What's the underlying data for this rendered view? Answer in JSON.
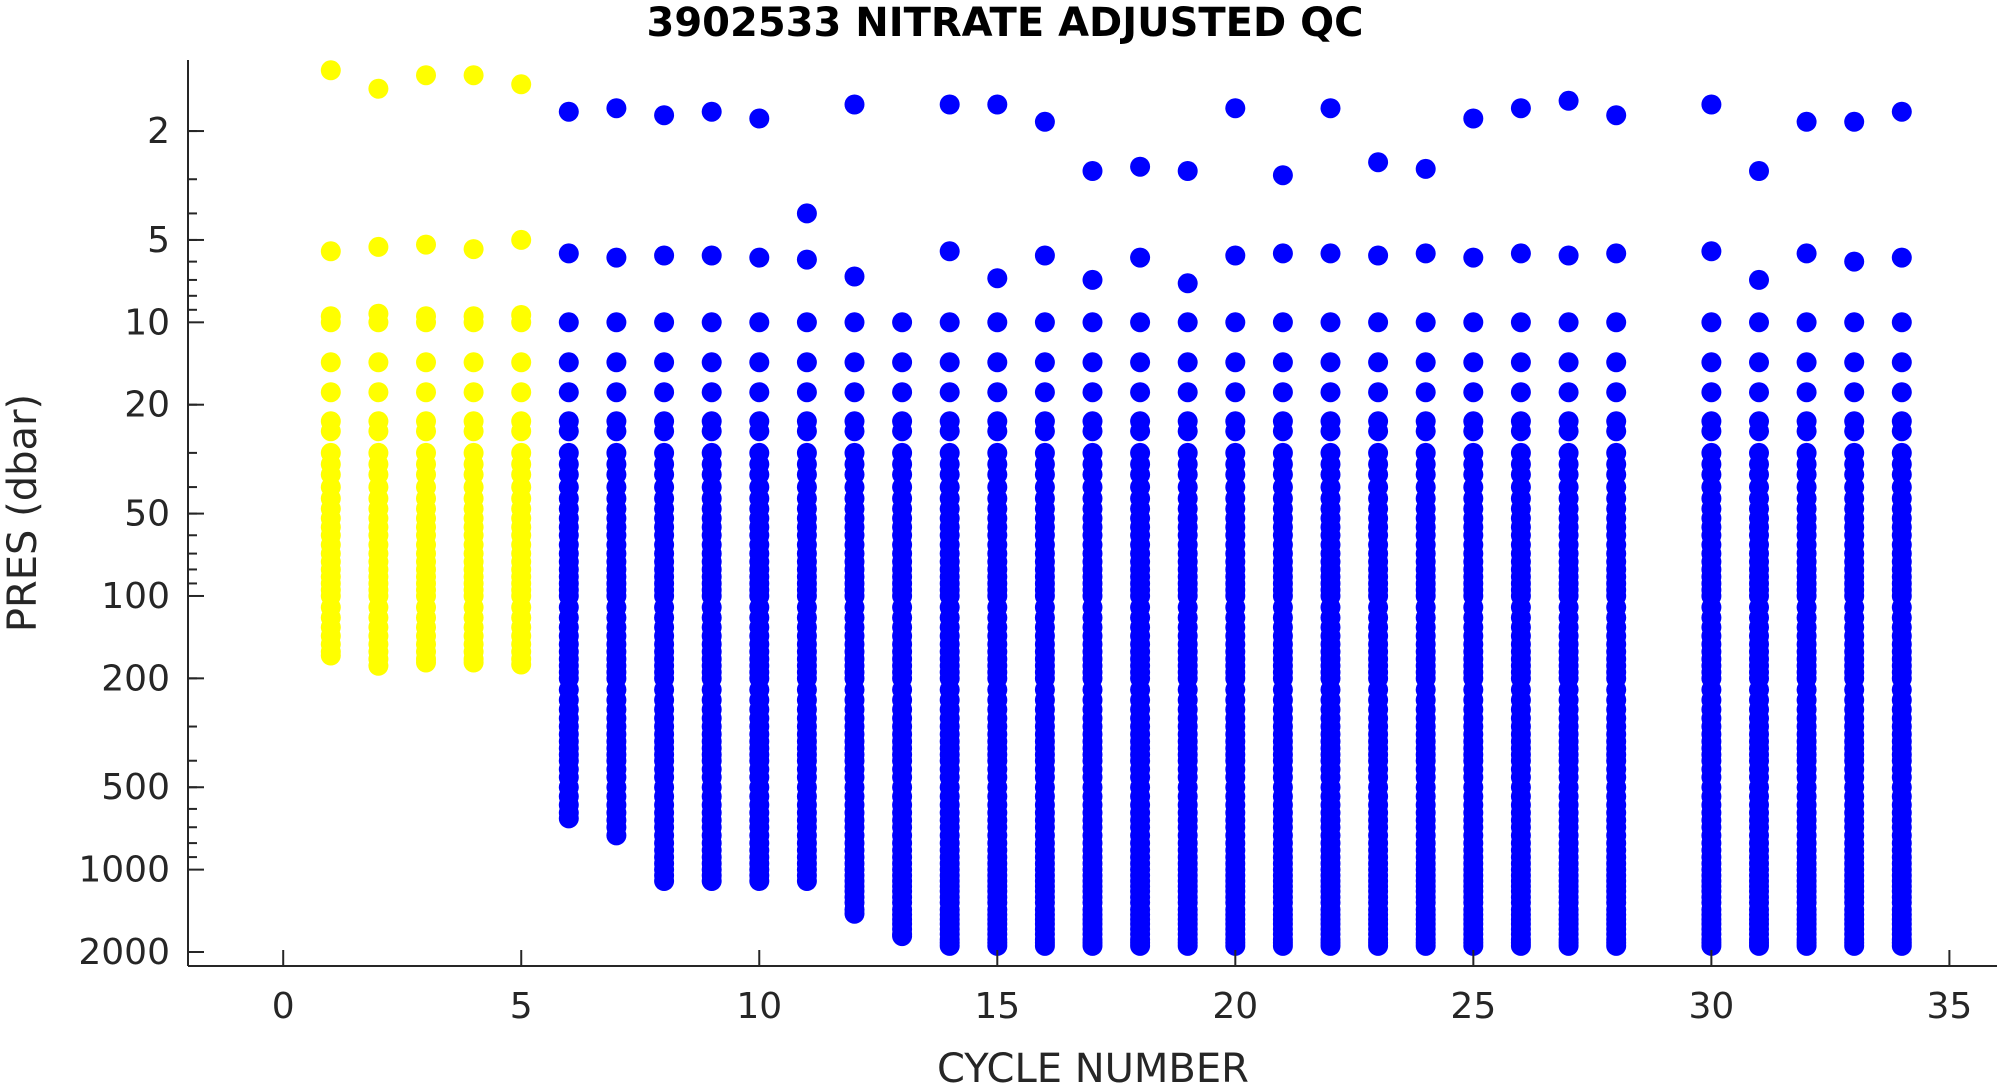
{
  "chart_data": {
    "type": "scatter",
    "title": "3902533  NITRATE ADJUSTED QC",
    "xlabel": "CYCLE NUMBER",
    "ylabel": "PRES (dbar)",
    "xlim": [
      -2,
      36
    ],
    "ylim": [
      1.1,
      2250
    ],
    "y_scale": "log",
    "y_reversed": true,
    "x_ticks": [
      0,
      5,
      10,
      15,
      20,
      25,
      30,
      35
    ],
    "y_ticks": [
      2,
      5,
      10,
      20,
      50,
      100,
      200,
      500,
      1000,
      2000
    ],
    "grid": false,
    "legend": "none",
    "profile_levels": [
      10,
      14,
      18,
      23,
      25,
      30,
      33,
      36,
      40,
      44,
      48,
      52,
      56,
      60,
      65,
      70,
      75,
      80,
      85,
      90,
      95,
      100,
      110,
      120,
      130,
      140,
      150,
      160,
      170,
      180,
      190,
      200,
      220,
      240,
      260,
      280,
      300,
      320,
      340,
      360,
      380,
      400,
      430,
      460,
      500,
      540,
      580,
      620,
      660,
      700,
      750,
      800,
      850,
      900,
      950,
      1000,
      1050,
      1100,
      1150,
      1200,
      1260,
      1320,
      1400,
      1460,
      1520,
      1580,
      1650,
      1720,
      1800,
      1850,
      1900
    ],
    "series": [
      {
        "color": "#FFFF00",
        "profiles": [
          {
            "cycle": 1,
            "top": [
              1.2,
              5.5,
              9.5
            ],
            "max": 165
          },
          {
            "cycle": 2,
            "top": [
              1.4,
              5.3,
              9.3
            ],
            "max": 180
          },
          {
            "cycle": 3,
            "top": [
              1.25,
              5.2,
              9.5
            ],
            "max": 175
          },
          {
            "cycle": 4,
            "top": [
              1.25,
              5.4,
              9.5
            ],
            "max": 175
          },
          {
            "cycle": 5,
            "top": [
              1.35,
              5.0,
              9.4
            ],
            "max": 178
          }
        ]
      },
      {
        "color": "#0000FF",
        "profiles": [
          {
            "cycle": 6,
            "top": [
              1.7,
              5.6
            ],
            "max": 650
          },
          {
            "cycle": 7,
            "top": [
              1.65,
              5.8
            ],
            "max": 750
          },
          {
            "cycle": 8,
            "top": [
              1.75,
              5.7
            ],
            "max": 1100
          },
          {
            "cycle": 9,
            "top": [
              1.7,
              5.7
            ],
            "max": 1100
          },
          {
            "cycle": 10,
            "top": [
              1.8,
              5.8
            ],
            "max": 1100
          },
          {
            "cycle": 11,
            "top": [
              4.0,
              5.9
            ],
            "max": 1100
          },
          {
            "cycle": 12,
            "top": [
              1.6,
              6.8
            ],
            "max": 1450
          },
          {
            "cycle": 13,
            "top": [],
            "max": 1750
          },
          {
            "cycle": 14,
            "top": [
              1.6,
              5.5
            ],
            "max": 1900
          },
          {
            "cycle": 15,
            "top": [
              1.6,
              6.9
            ],
            "max": 1900
          },
          {
            "cycle": 16,
            "top": [
              1.85,
              5.7
            ],
            "max": 1900
          },
          {
            "cycle": 17,
            "top": [
              2.8,
              7.0
            ],
            "max": 1900
          },
          {
            "cycle": 18,
            "top": [
              2.7,
              5.8
            ],
            "max": 1900
          },
          {
            "cycle": 19,
            "top": [
              2.8,
              7.2
            ],
            "max": 1900
          },
          {
            "cycle": 20,
            "top": [
              1.65,
              5.7
            ],
            "max": 1900
          },
          {
            "cycle": 21,
            "top": [
              2.9,
              5.6
            ],
            "max": 1900
          },
          {
            "cycle": 22,
            "top": [
              1.65,
              5.6
            ],
            "max": 1900
          },
          {
            "cycle": 23,
            "top": [
              2.6,
              5.7
            ],
            "max": 1900
          },
          {
            "cycle": 24,
            "top": [
              2.75,
              5.6
            ],
            "max": 1900
          },
          {
            "cycle": 25,
            "top": [
              1.8,
              5.8
            ],
            "max": 1900
          },
          {
            "cycle": 26,
            "top": [
              1.65,
              5.6
            ],
            "max": 1900
          },
          {
            "cycle": 27,
            "top": [
              1.55,
              5.7
            ],
            "max": 1900
          },
          {
            "cycle": 28,
            "top": [
              1.75,
              5.6
            ],
            "max": 1900
          },
          {
            "cycle": 30,
            "top": [
              1.6,
              5.5
            ],
            "max": 1900
          },
          {
            "cycle": 31,
            "top": [
              2.8,
              7.0
            ],
            "max": 1900
          },
          {
            "cycle": 32,
            "top": [
              1.85,
              5.6
            ],
            "max": 1900
          },
          {
            "cycle": 33,
            "top": [
              1.85,
              6.0
            ],
            "max": 1900
          },
          {
            "cycle": 34,
            "top": [
              1.7,
              5.8
            ],
            "max": 1900
          }
        ]
      }
    ]
  }
}
